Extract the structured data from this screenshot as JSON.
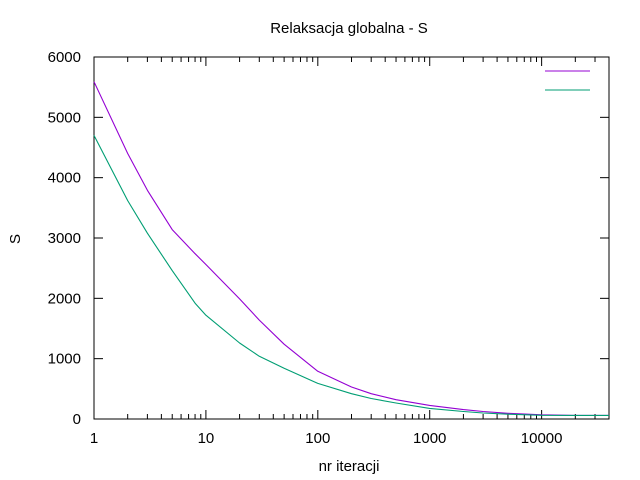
{
  "chart_data": {
    "type": "line",
    "title": "Relaksacja globalna - S",
    "xlabel": "nr iteracji",
    "ylabel": "S",
    "xscale": "log",
    "xlim": [
      1,
      40000
    ],
    "ylim": [
      0,
      6000
    ],
    "x_ticks": [
      1,
      10,
      100,
      1000,
      10000
    ],
    "x_tick_labels": [
      "1",
      "10",
      "100",
      "1000",
      "10000"
    ],
    "y_ticks": [
      0,
      1000,
      2000,
      3000,
      4000,
      5000,
      6000
    ],
    "y_tick_labels": [
      "0",
      "1000",
      "2000",
      "3000",
      "4000",
      "5000",
      "6000"
    ],
    "grid": false,
    "legend_position": "top-right",
    "series": [
      {
        "color": "#9400d3",
        "x": [
          1,
          2,
          3,
          5,
          8,
          10,
          20,
          30,
          50,
          100,
          200,
          300,
          500,
          1000,
          2000,
          3000,
          5000,
          10000,
          20000,
          40000
        ],
        "y": [
          5590,
          4400,
          3790,
          3140,
          2740,
          2560,
          1990,
          1640,
          1240,
          790,
          530,
          420,
          320,
          225,
          155,
          125,
          95,
          70,
          60,
          60
        ]
      },
      {
        "color": "#009e73",
        "x": [
          1,
          2,
          3,
          5,
          8,
          10,
          20,
          30,
          50,
          100,
          200,
          300,
          500,
          1000,
          2000,
          3000,
          5000,
          10000,
          20000,
          40000
        ],
        "y": [
          4700,
          3620,
          3080,
          2460,
          1920,
          1720,
          1260,
          1040,
          840,
          590,
          420,
          340,
          265,
          175,
          125,
          100,
          80,
          62,
          60,
          60
        ]
      }
    ]
  }
}
